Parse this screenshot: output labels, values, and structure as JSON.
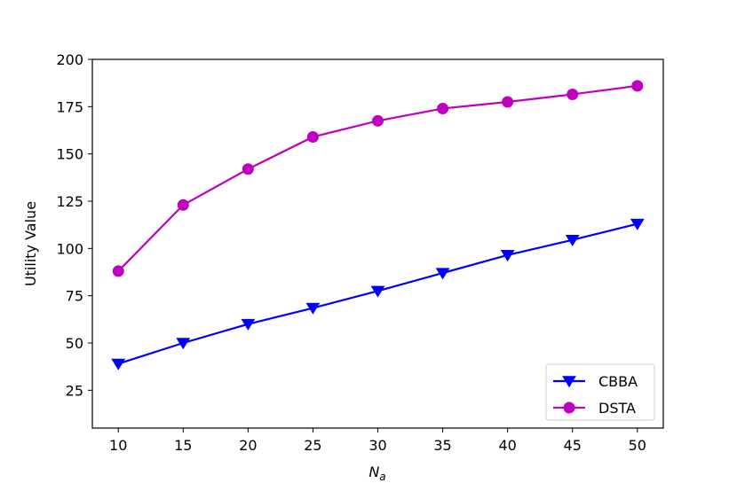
{
  "chart_data": {
    "type": "line",
    "xlabel": "N",
    "xlabel_sub": "a",
    "ylabel": "Utility Value",
    "xlim": [
      8,
      52
    ],
    "ylim": [
      5,
      200
    ],
    "xticks": [
      10,
      15,
      20,
      25,
      30,
      35,
      40,
      45,
      50
    ],
    "yticks": [
      25,
      50,
      75,
      100,
      125,
      150,
      175,
      200
    ],
    "x": [
      10,
      15,
      20,
      25,
      30,
      35,
      40,
      45,
      50
    ],
    "series": [
      {
        "name": "CBBA",
        "marker": "triangle-down",
        "color": "#0000ff",
        "values": [
          39,
          50,
          60,
          68.5,
          77.5,
          87,
          96.5,
          104.5,
          113
        ]
      },
      {
        "name": "DSTA",
        "marker": "circle",
        "color": "#bf00bf",
        "values": [
          88,
          123,
          142,
          159,
          167.5,
          174,
          177.5,
          181.5,
          186
        ]
      }
    ],
    "legend_position": "lower-right",
    "grid": false
  }
}
